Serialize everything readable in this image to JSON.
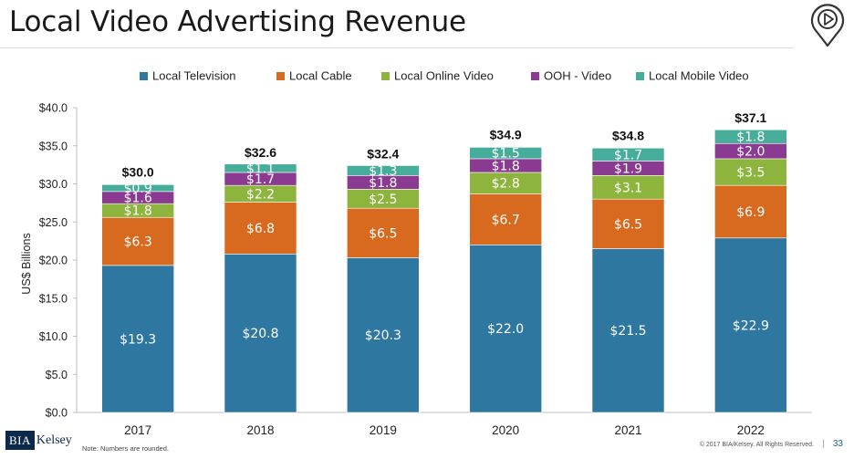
{
  "page": {
    "title": "Local Video Advertising Revenue",
    "note": "Note: Numbers are rounded.",
    "copyright": "© 2017 BIA/Kelsey. All Rights Reserved.",
    "separator": "|",
    "page_number": "33",
    "logo_text_1": "BIA",
    "logo_text_2": "Kelsey"
  },
  "chart_data": {
    "type": "bar",
    "stacked": true,
    "title": "",
    "xlabel": "",
    "ylabel": "US$ Billions",
    "ylim": [
      0,
      40
    ],
    "yticks": [
      0,
      5,
      10,
      15,
      20,
      25,
      30,
      35,
      40
    ],
    "ytick_labels": [
      "$0.0",
      "$5.0",
      "$10.0",
      "$15.0",
      "$20.0",
      "$25.0",
      "$30.0",
      "$35.0",
      "$40.0"
    ],
    "grid": false,
    "legend_position": "top",
    "categories": [
      "2017",
      "2018",
      "2019",
      "2020",
      "2021",
      "2022"
    ],
    "series": [
      {
        "name": "Local Television",
        "color": "#2e77a0",
        "values": [
          19.3,
          20.8,
          20.3,
          22.0,
          21.5,
          22.9
        ],
        "labels": [
          "$19.3",
          "$20.8",
          "$20.3",
          "$22.0",
          "$21.5",
          "$22.9"
        ]
      },
      {
        "name": "Local Cable",
        "color": "#d86a1f",
        "values": [
          6.3,
          6.8,
          6.5,
          6.7,
          6.5,
          6.9
        ],
        "labels": [
          "$6.3",
          "$6.8",
          "$6.5",
          "$6.7",
          "$6.5",
          "$6.9"
        ]
      },
      {
        "name": "Local Online Video",
        "color": "#8db43c",
        "values": [
          1.8,
          2.2,
          2.5,
          2.8,
          3.1,
          3.5
        ],
        "labels": [
          "$1.8",
          "$2.2",
          "$2.5",
          "$2.8",
          "$3.1",
          "$3.5"
        ]
      },
      {
        "name": "OOH - Video",
        "color": "#8a3a91",
        "values": [
          1.6,
          1.7,
          1.8,
          1.8,
          1.9,
          2.0
        ],
        "labels": [
          "$1.6",
          "$1.7",
          "$1.8",
          "$1.8",
          "$1.9",
          "$2.0"
        ]
      },
      {
        "name": "Local Mobile Video",
        "color": "#45ad99",
        "values": [
          0.9,
          1.1,
          1.3,
          1.5,
          1.7,
          1.8
        ],
        "labels": [
          "$0.9",
          "$1.1",
          "$1.3",
          "$1.5",
          "$1.7",
          "$1.8"
        ]
      }
    ],
    "totals": [
      30.0,
      32.6,
      32.4,
      34.9,
      34.8,
      37.1
    ],
    "total_labels": [
      "$30.0",
      "$32.6",
      "$32.4",
      "$34.9",
      "$34.8",
      "$37.1"
    ]
  }
}
